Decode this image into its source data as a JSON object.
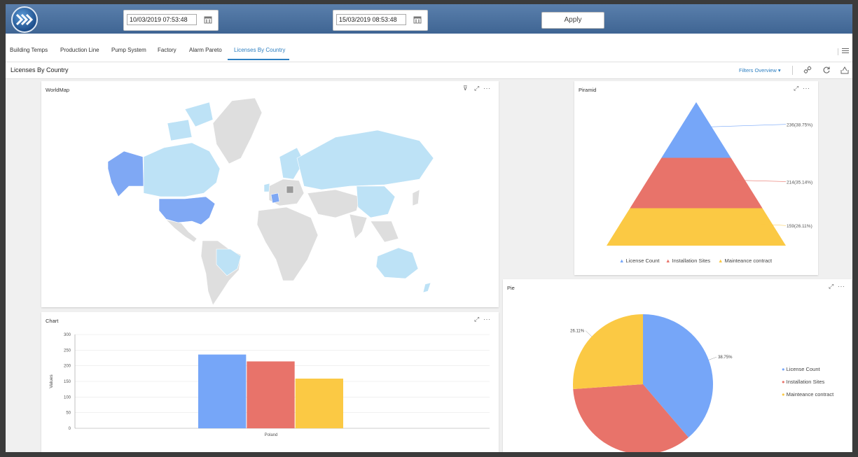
{
  "header": {
    "date_from": "10/03/2019 07:53:48",
    "date_to": "15/03/2019 08:53:48",
    "apply_label": "Apply"
  },
  "tabs": [
    {
      "label": "Building Temps"
    },
    {
      "label": "Production Line"
    },
    {
      "label": "Pump System"
    },
    {
      "label": "Factory"
    },
    {
      "label": "Alarm Pareto"
    },
    {
      "label": "Licenses By Country",
      "active": true
    }
  ],
  "page": {
    "title": "Licenses By Country",
    "filters_label": "Filters Overview"
  },
  "panels": {
    "worldmap": {
      "title": "WorldMap"
    },
    "piramid": {
      "title": "Piramid"
    },
    "chart": {
      "title": "Chart"
    },
    "pie": {
      "title": "Pie"
    }
  },
  "colors": {
    "blue": "#76a6f8",
    "red": "#e8736a",
    "yellow": "#fbc944",
    "accent": "#2d7fc1",
    "map_highlight": "#7fa8f4",
    "map_light": "#bde2f6",
    "map_gray": "#dedede",
    "map_dark": "#9a9a9a"
  },
  "chart_data": [
    {
      "type": "pyramid",
      "title": "Piramid",
      "series": [
        {
          "name": "License Count",
          "value": 236,
          "label": "236(38.75%)"
        },
        {
          "name": "Installation Sites",
          "value": 214,
          "label": "214(35.14%)"
        },
        {
          "name": "Mainteance contract",
          "value": 159,
          "label": "159(26.11%)"
        }
      ]
    },
    {
      "type": "bar",
      "title": "Chart",
      "categories": [
        "Poland"
      ],
      "series": [
        {
          "name": "License Count",
          "values": [
            236
          ]
        },
        {
          "name": "Installation Sites",
          "values": [
            214
          ]
        },
        {
          "name": "Mainteance contract",
          "values": [
            159
          ]
        }
      ],
      "ylabel": "Values",
      "yticks": [
        "0",
        "50",
        "100",
        "150",
        "200",
        "250",
        "300"
      ],
      "ylim": [
        0,
        300
      ],
      "grid": true
    },
    {
      "type": "pie",
      "title": "Pie",
      "series": [
        {
          "name": "License Count",
          "value": 38.75,
          "label": "38.75%"
        },
        {
          "name": "Installation Sites",
          "value": 35.14,
          "label": ""
        },
        {
          "name": "Mainteance contract",
          "value": 26.11,
          "label": "26.11%"
        }
      ],
      "legend": "right"
    }
  ]
}
